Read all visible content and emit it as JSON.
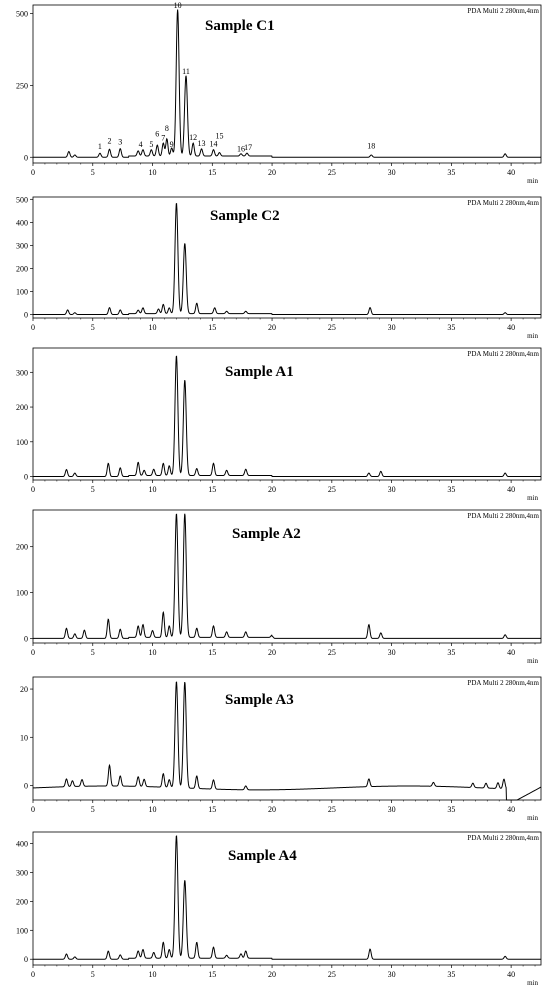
{
  "figure": {
    "detector_label": "PDA Multi 2 280nm,4nm",
    "x_unit": "min",
    "x_ticks": [
      0,
      5,
      10,
      15,
      20,
      25,
      30,
      35,
      40
    ],
    "xlim": [
      0,
      42.5
    ],
    "peak_labels": [
      "1",
      "2",
      "3",
      "4",
      "5",
      "6",
      "7",
      "8",
      "9",
      "10",
      "11",
      "12",
      "13",
      "14",
      "15",
      "16",
      "17",
      "18"
    ]
  },
  "chart_data": [
    {
      "type": "line",
      "title": "Sample C1",
      "xlabel": "min",
      "ylim": [
        -20,
        530
      ],
      "y_ticks": [
        0,
        250,
        500
      ],
      "peaks": [
        {
          "x": 3.0,
          "y": 20
        },
        {
          "x": 3.5,
          "y": 8
        },
        {
          "x": 5.6,
          "y": 14
        },
        {
          "x": 6.4,
          "y": 28
        },
        {
          "x": 7.3,
          "y": 30
        },
        {
          "x": 8.8,
          "y": 18
        },
        {
          "x": 9.2,
          "y": 22
        },
        {
          "x": 9.9,
          "y": 22
        },
        {
          "x": 10.4,
          "y": 38
        },
        {
          "x": 10.9,
          "y": 45
        },
        {
          "x": 11.2,
          "y": 60
        },
        {
          "x": 11.6,
          "y": 28
        },
        {
          "x": 12.1,
          "y": 510
        },
        {
          "x": 12.8,
          "y": 280
        },
        {
          "x": 13.4,
          "y": 45
        },
        {
          "x": 14.1,
          "y": 25
        },
        {
          "x": 15.1,
          "y": 22
        },
        {
          "x": 15.6,
          "y": 12
        },
        {
          "x": 17.4,
          "y": 8
        },
        {
          "x": 17.9,
          "y": 10
        },
        {
          "x": 28.3,
          "y": 8
        },
        {
          "x": 39.5,
          "y": 12
        }
      ]
    },
    {
      "type": "line",
      "title": "Sample C2",
      "xlabel": "min",
      "ylim": [
        -15,
        510
      ],
      "y_ticks": [
        0,
        100,
        200,
        300,
        400,
        500
      ],
      "peaks": [
        {
          "x": 2.9,
          "y": 20
        },
        {
          "x": 3.5,
          "y": 8
        },
        {
          "x": 6.4,
          "y": 30
        },
        {
          "x": 7.3,
          "y": 20
        },
        {
          "x": 8.8,
          "y": 15
        },
        {
          "x": 9.2,
          "y": 25
        },
        {
          "x": 10.5,
          "y": 20
        },
        {
          "x": 10.9,
          "y": 40
        },
        {
          "x": 11.4,
          "y": 25
        },
        {
          "x": 12.0,
          "y": 480
        },
        {
          "x": 12.7,
          "y": 305
        },
        {
          "x": 13.7,
          "y": 45
        },
        {
          "x": 15.2,
          "y": 25
        },
        {
          "x": 16.2,
          "y": 10
        },
        {
          "x": 17.8,
          "y": 10
        },
        {
          "x": 28.2,
          "y": 30
        },
        {
          "x": 39.5,
          "y": 8
        }
      ]
    },
    {
      "type": "line",
      "title": "Sample A1",
      "xlabel": "min",
      "ylim": [
        -10,
        370
      ],
      "y_ticks": [
        0,
        100,
        200,
        300
      ],
      "peaks": [
        {
          "x": 2.8,
          "y": 20
        },
        {
          "x": 3.5,
          "y": 10
        },
        {
          "x": 6.3,
          "y": 38
        },
        {
          "x": 7.3,
          "y": 25
        },
        {
          "x": 8.8,
          "y": 38
        },
        {
          "x": 9.3,
          "y": 15
        },
        {
          "x": 10.1,
          "y": 18
        },
        {
          "x": 10.9,
          "y": 35
        },
        {
          "x": 11.4,
          "y": 28
        },
        {
          "x": 12.0,
          "y": 345
        },
        {
          "x": 12.7,
          "y": 275
        },
        {
          "x": 13.7,
          "y": 20
        },
        {
          "x": 15.1,
          "y": 35
        },
        {
          "x": 16.2,
          "y": 15
        },
        {
          "x": 17.8,
          "y": 18
        },
        {
          "x": 28.1,
          "y": 10
        },
        {
          "x": 29.1,
          "y": 15
        },
        {
          "x": 39.5,
          "y": 10
        }
      ]
    },
    {
      "type": "line",
      "title": "Sample A2",
      "xlabel": "min",
      "ylim": [
        -10,
        280
      ],
      "y_ticks": [
        0,
        100,
        200
      ],
      "peaks": [
        {
          "x": 2.8,
          "y": 22
        },
        {
          "x": 3.5,
          "y": 10
        },
        {
          "x": 4.3,
          "y": 18
        },
        {
          "x": 6.3,
          "y": 42
        },
        {
          "x": 7.3,
          "y": 20
        },
        {
          "x": 8.8,
          "y": 25
        },
        {
          "x": 9.2,
          "y": 28
        },
        {
          "x": 10.0,
          "y": 15
        },
        {
          "x": 10.9,
          "y": 55
        },
        {
          "x": 11.4,
          "y": 25
        },
        {
          "x": 12.0,
          "y": 270
        },
        {
          "x": 12.7,
          "y": 270
        },
        {
          "x": 13.7,
          "y": 20
        },
        {
          "x": 15.1,
          "y": 25
        },
        {
          "x": 16.2,
          "y": 12
        },
        {
          "x": 17.8,
          "y": 12
        },
        {
          "x": 20.0,
          "y": 5
        },
        {
          "x": 28.1,
          "y": 30
        },
        {
          "x": 29.1,
          "y": 12
        },
        {
          "x": 39.5,
          "y": 8
        }
      ]
    },
    {
      "type": "line",
      "title": "Sample A3",
      "xlabel": "min",
      "ylim": [
        -3,
        22.5
      ],
      "y_ticks": [
        0,
        10,
        20
      ],
      "peaks": [
        {
          "x": 2.8,
          "y": 1.6
        },
        {
          "x": 3.3,
          "y": 1.2
        },
        {
          "x": 4.1,
          "y": 1.4
        },
        {
          "x": 6.4,
          "y": 4.3
        },
        {
          "x": 7.3,
          "y": 2.1
        },
        {
          "x": 8.8,
          "y": 2.0
        },
        {
          "x": 9.3,
          "y": 1.5
        },
        {
          "x": 10.9,
          "y": 2.8
        },
        {
          "x": 11.4,
          "y": 1.6
        },
        {
          "x": 12.0,
          "y": 22
        },
        {
          "x": 12.7,
          "y": 22
        },
        {
          "x": 13.7,
          "y": 2.6
        },
        {
          "x": 15.1,
          "y": 1.9
        },
        {
          "x": 17.8,
          "y": 0.8
        },
        {
          "x": 28.1,
          "y": 1.6
        },
        {
          "x": 33.5,
          "y": 0.8
        },
        {
          "x": 36.8,
          "y": 0.9
        },
        {
          "x": 37.9,
          "y": 1.0
        },
        {
          "x": 38.9,
          "y": 1.2
        },
        {
          "x": 39.4,
          "y": 2.0
        }
      ]
    },
    {
      "type": "line",
      "title": "Sample A4",
      "xlabel": "min",
      "ylim": [
        -20,
        440
      ],
      "y_ticks": [
        0,
        100,
        200,
        300,
        400
      ],
      "peaks": [
        {
          "x": 2.8,
          "y": 18
        },
        {
          "x": 3.5,
          "y": 8
        },
        {
          "x": 6.3,
          "y": 28
        },
        {
          "x": 7.3,
          "y": 15
        },
        {
          "x": 8.8,
          "y": 25
        },
        {
          "x": 9.2,
          "y": 30
        },
        {
          "x": 10.1,
          "y": 20
        },
        {
          "x": 10.9,
          "y": 55
        },
        {
          "x": 11.4,
          "y": 30
        },
        {
          "x": 12.0,
          "y": 425
        },
        {
          "x": 12.7,
          "y": 270
        },
        {
          "x": 13.7,
          "y": 55
        },
        {
          "x": 15.1,
          "y": 38
        },
        {
          "x": 16.2,
          "y": 10
        },
        {
          "x": 17.4,
          "y": 15
        },
        {
          "x": 17.8,
          "y": 25
        },
        {
          "x": 28.2,
          "y": 35
        },
        {
          "x": 39.5,
          "y": 10
        }
      ]
    }
  ]
}
